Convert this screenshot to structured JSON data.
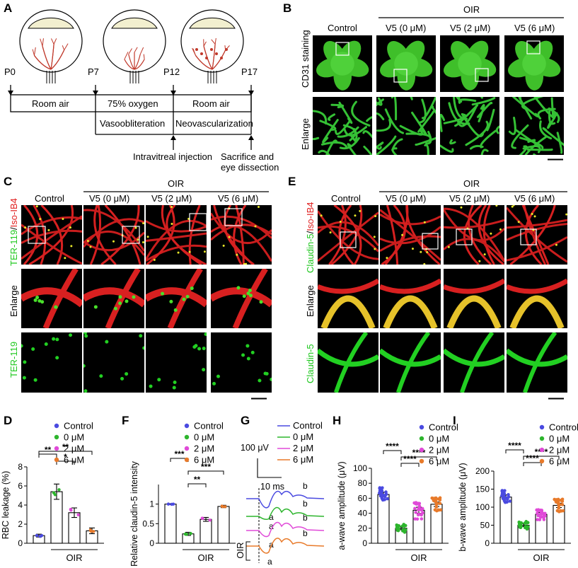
{
  "panel_labels": {
    "a": "A",
    "b": "B",
    "c": "C",
    "d": "D",
    "e": "E",
    "f": "F",
    "g": "G",
    "h": "H",
    "i": "I"
  },
  "panelA": {
    "timepoints": [
      "P0",
      "P7",
      "P12",
      "P17"
    ],
    "row1": [
      "Room air",
      "75% oxygen",
      "Room air"
    ],
    "row2": [
      "Vasoobliteration",
      "Neovascularization"
    ],
    "injection": "Intravitreal injection",
    "sacrifice_line1": "Sacrifice and",
    "sacrifice_line2": "eye dissection"
  },
  "panelB": {
    "oir": "OIR",
    "columns": [
      "Control",
      "V5 (0 μM)",
      "V5 (2 μM)",
      "V5 (6 μM)"
    ],
    "row_labels": [
      "CD31 staining",
      "Enlarge"
    ]
  },
  "panelC": {
    "oir": "OIR",
    "columns": [
      "Control",
      "V5 (0 μM)",
      "V5 (2 μM)",
      "V5 (6 μM)"
    ],
    "row1_green": "TER-119",
    "row1_sep": "/",
    "row1_red": "Iso-IB4",
    "row2": "Enlarge",
    "row3": "TER-119"
  },
  "panelE": {
    "oir": "OIR",
    "columns": [
      "Control",
      "V5 (0 μM)",
      "V5 (2 μM)",
      "V5 (6 μM)"
    ],
    "row1_green": "Claudin-5",
    "row1_sep": "/",
    "row1_red": "Iso-IB4",
    "row2": "Enlarge",
    "row3": "Claudin-5"
  },
  "legend": [
    "Control",
    "0 μM",
    "2 μM",
    "6 μM"
  ],
  "colors": {
    "control": "#4a4ae0",
    "v0": "#2db52d",
    "v2": "#e04ad8",
    "v6": "#e87a2a",
    "green": "#1fc81f",
    "red": "#e02020"
  },
  "chart_data": [
    {
      "type": "bar",
      "panel": "D",
      "categories": [
        "Control",
        "0 μM",
        "2 μM",
        "6 μM"
      ],
      "values": [
        0.8,
        5.4,
        3.2,
        1.3
      ],
      "errors": [
        0.15,
        0.8,
        0.5,
        0.3
      ],
      "ylabel": "RBC leakage (%)",
      "xlabel": "OIR",
      "ylim": [
        0,
        8
      ],
      "yticks": [
        "0",
        "2",
        "4",
        "6",
        "8"
      ],
      "sig": [
        "**",
        "*",
        "**"
      ]
    },
    {
      "type": "bar",
      "panel": "F",
      "categories": [
        "Control",
        "0 μM",
        "2 μM",
        "6 μM"
      ],
      "values": [
        1.0,
        0.24,
        0.61,
        0.94
      ],
      "errors": [
        0.01,
        0.04,
        0.05,
        0.03
      ],
      "ylabel": "Relative claudin-5 intensity",
      "xlabel": "OIR",
      "ylim": [
        0,
        1.5
      ],
      "yticks": [
        "0",
        "0.5",
        "1"
      ],
      "sig": [
        "***",
        "**",
        "***"
      ]
    },
    {
      "type": "line",
      "panel": "G",
      "series": [
        {
          "name": "Control"
        },
        {
          "name": "0 μM"
        },
        {
          "name": "2 μM"
        },
        {
          "name": "6 μM"
        }
      ],
      "scale_y": "100 μV",
      "scale_x": "10 ms",
      "side_label": "OIR",
      "wave_labels": [
        "a",
        "b"
      ]
    },
    {
      "type": "bar",
      "panel": "H",
      "categories": [
        "Control",
        "0 μM",
        "2 μM",
        "6 μM"
      ],
      "values": [
        65,
        20,
        44,
        52
      ],
      "errors": [
        3,
        2,
        4,
        3
      ],
      "ylabel": "a-wave amplitude (μV)",
      "xlabel": "OIR",
      "ylim": [
        0,
        100
      ],
      "yticks": [
        "0",
        "20",
        "40",
        "60",
        "80",
        "100"
      ],
      "sig": [
        "****",
        "****",
        "****"
      ]
    },
    {
      "type": "bar",
      "panel": "I",
      "categories": [
        "Control",
        "0 μM",
        "2 μM",
        "6 μM"
      ],
      "values": [
        128,
        50,
        80,
        105
      ],
      "errors": [
        6,
        4,
        5,
        6
      ],
      "ylabel": "b-wave amplitude (μV)",
      "xlabel": "OIR",
      "ylim": [
        0,
        200
      ],
      "yticks": [
        "0",
        "50",
        "100",
        "150",
        "200"
      ],
      "sig": [
        "****",
        "****",
        "****"
      ]
    }
  ]
}
